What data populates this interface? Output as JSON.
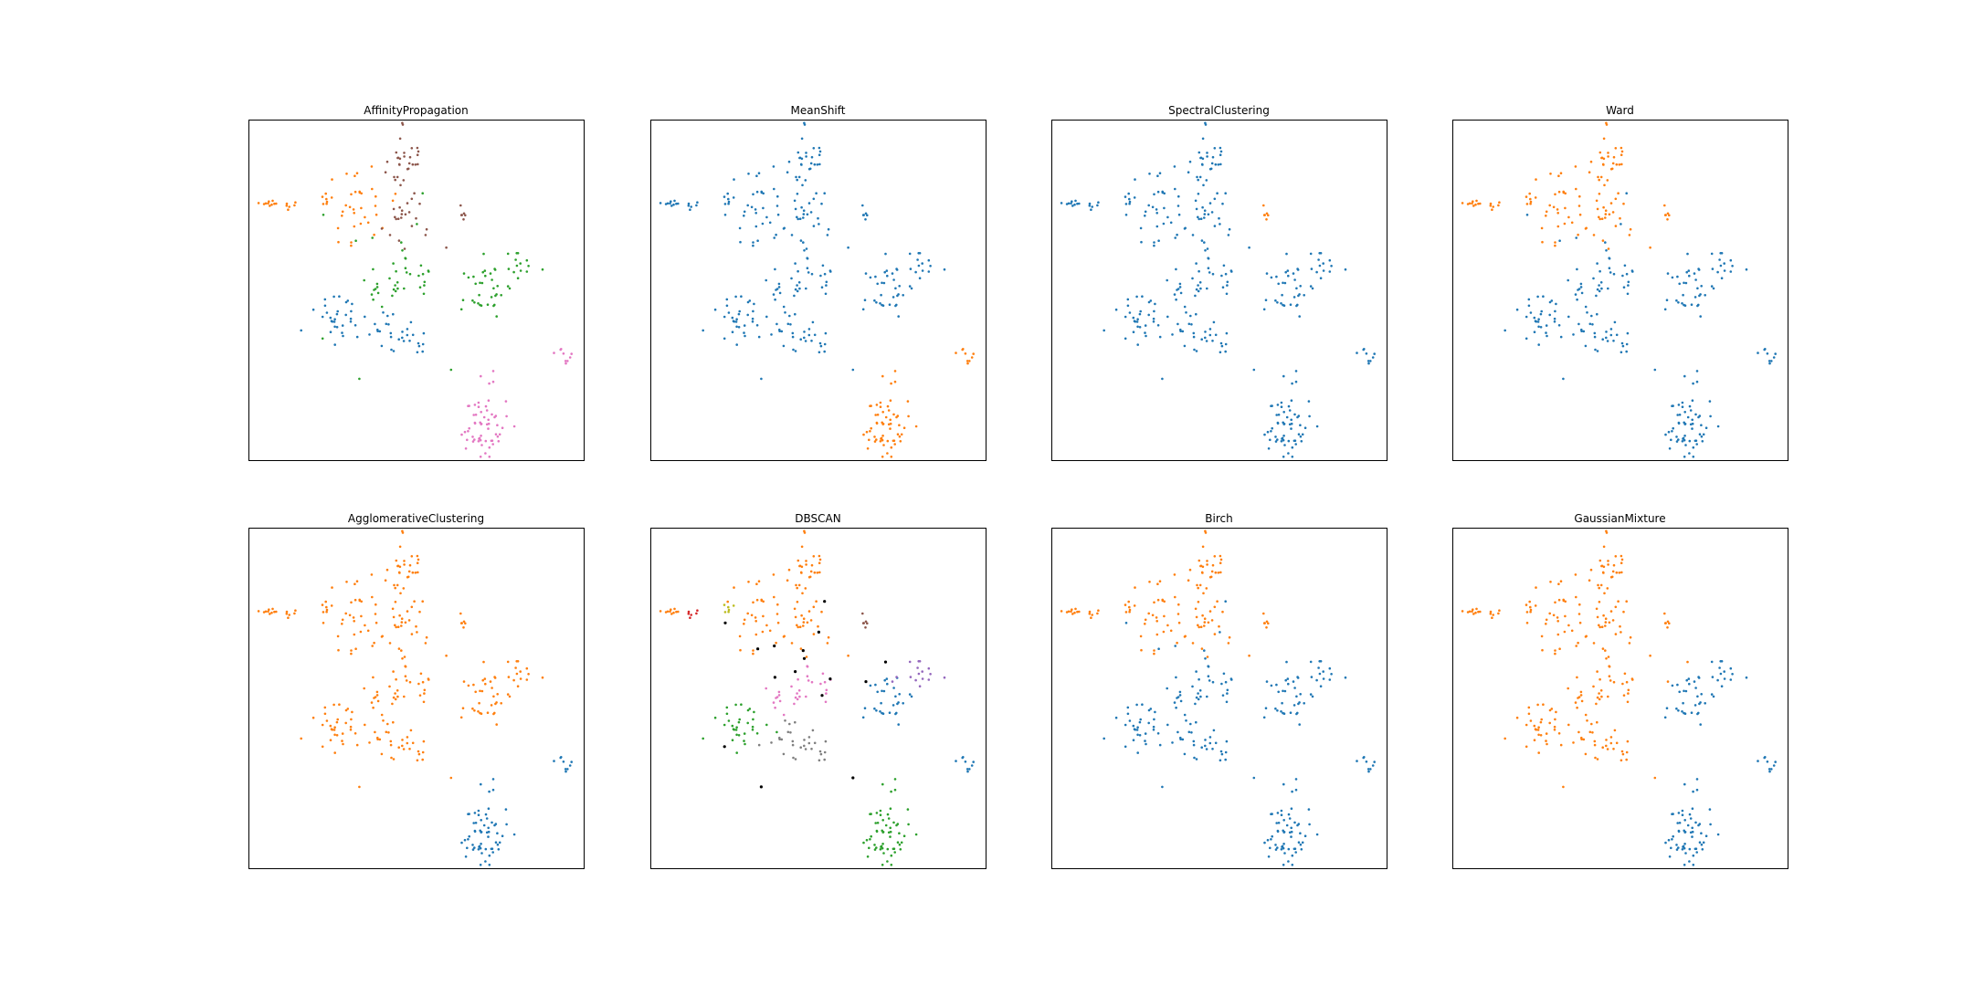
{
  "cluster_colors": {
    "blue": "#1f77b4",
    "orange": "#ff7f0e",
    "green": "#2ca02c",
    "red": "#d62728",
    "purple": "#9467bd",
    "brown": "#8c564b",
    "pink": "#e377c2",
    "gray": "#7f7f7f",
    "olive": "#bcbd22",
    "noise": "#000000"
  },
  "chart_data": [
    {
      "type": "scatter",
      "title": "AffinityPropagation",
      "grid": false,
      "xlabel": "",
      "ylabel": "",
      "xlim": [
        0,
        100
      ],
      "ylim": [
        0,
        100
      ],
      "assignment": {
        "left_arm": "orange",
        "upper_arm": "orange",
        "top_arm": "brown",
        "center_upper": "brown",
        "small_right_upper": "brown",
        "center_lower": "green",
        "right_mid": "green",
        "right_arm": "green",
        "lower_left": "blue",
        "lower_mid": "blue",
        "bottom_right_blob": "pink",
        "far_right_small": "pink"
      }
    },
    {
      "type": "scatter",
      "title": "MeanShift",
      "grid": false,
      "xlabel": "",
      "ylabel": "",
      "xlim": [
        0,
        100
      ],
      "ylim": [
        0,
        100
      ],
      "assignment": {
        "left_arm": "blue",
        "upper_arm": "blue",
        "top_arm": "blue",
        "center_upper": "blue",
        "small_right_upper": "blue",
        "center_lower": "blue",
        "right_mid": "blue",
        "right_arm": "blue",
        "lower_left": "blue",
        "lower_mid": "blue",
        "bottom_right_blob": "orange",
        "far_right_small": "orange"
      }
    },
    {
      "type": "scatter",
      "title": "SpectralClustering",
      "grid": false,
      "xlabel": "",
      "ylabel": "",
      "xlim": [
        0,
        100
      ],
      "ylim": [
        0,
        100
      ],
      "assignment": {
        "left_arm": "blue",
        "upper_arm": "blue",
        "top_arm": "blue",
        "center_upper": "blue",
        "small_right_upper": "orange",
        "center_lower": "blue",
        "right_mid": "blue",
        "right_arm": "blue",
        "lower_left": "blue",
        "lower_mid": "blue",
        "bottom_right_blob": "blue",
        "far_right_small": "blue"
      }
    },
    {
      "type": "scatter",
      "title": "Ward",
      "grid": false,
      "xlabel": "",
      "ylabel": "",
      "xlim": [
        0,
        100
      ],
      "ylim": [
        0,
        100
      ],
      "assignment": {
        "left_arm": "orange",
        "upper_arm": "orange",
        "top_arm": "orange",
        "center_upper": "orange",
        "small_right_upper": "orange",
        "center_lower": "blue",
        "right_mid": "blue",
        "right_arm": "blue",
        "lower_left": "blue",
        "lower_mid": "blue",
        "bottom_right_blob": "blue",
        "far_right_small": "blue"
      }
    },
    {
      "type": "scatter",
      "title": "AgglomerativeClustering",
      "grid": false,
      "xlabel": "",
      "ylabel": "",
      "xlim": [
        0,
        100
      ],
      "ylim": [
        0,
        100
      ],
      "assignment": {
        "left_arm": "orange",
        "upper_arm": "orange",
        "top_arm": "orange",
        "center_upper": "orange",
        "small_right_upper": "orange",
        "center_lower": "orange",
        "right_mid": "orange",
        "right_arm": "orange",
        "lower_left": "orange",
        "lower_mid": "orange",
        "bottom_right_blob": "blue",
        "far_right_small": "blue"
      }
    },
    {
      "type": "scatter",
      "title": "DBSCAN",
      "grid": false,
      "xlabel": "",
      "ylabel": "",
      "xlim": [
        0,
        100
      ],
      "ylim": [
        0,
        100
      ],
      "assignment": {
        "left_arm": "orange",
        "left_arm_mid": "red",
        "left_arm_inner": "olive",
        "upper_arm": "orange",
        "top_arm": "orange",
        "center_upper": "orange",
        "small_right_upper": "brown",
        "center_lower": "pink",
        "right_mid": "blue",
        "right_arm": "purple",
        "lower_left": "green",
        "lower_mid": "gray",
        "bottom_right_blob": "green",
        "far_right_small": "blue",
        "scattered": "noise"
      }
    },
    {
      "type": "scatter",
      "title": "Birch",
      "grid": false,
      "xlabel": "",
      "ylabel": "",
      "xlim": [
        0,
        100
      ],
      "ylim": [
        0,
        100
      ],
      "assignment": {
        "left_arm": "orange",
        "upper_arm": "orange",
        "top_arm": "orange",
        "center_upper": "orange",
        "small_right_upper": "orange",
        "center_lower": "blue",
        "right_mid": "blue",
        "right_arm": "blue",
        "lower_left": "blue",
        "lower_mid": "blue",
        "bottom_right_blob": "blue",
        "far_right_small": "blue"
      }
    },
    {
      "type": "scatter",
      "title": "GaussianMixture",
      "grid": false,
      "xlabel": "",
      "ylabel": "",
      "xlim": [
        0,
        100
      ],
      "ylim": [
        0,
        100
      ],
      "assignment": {
        "left_arm": "orange",
        "upper_arm": "orange",
        "top_arm": "orange",
        "center_upper": "orange",
        "small_right_upper": "orange",
        "center_lower": "orange",
        "right_mid": "blue",
        "right_arm": "blue",
        "lower_left": "orange",
        "lower_mid": "orange",
        "bottom_right_blob": "blue",
        "far_right_small": "blue"
      }
    }
  ],
  "point_groups": {
    "left_arm": {
      "cx": 6,
      "cy": 75,
      "sx": 2.0,
      "sy": 0.8,
      "n": 10
    },
    "left_arm_mid": {
      "cx": 12,
      "cy": 74.5,
      "sx": 2.0,
      "sy": 0.6,
      "n": 6
    },
    "left_arm_inner": {
      "cx": 22,
      "cy": 75,
      "sx": 2.5,
      "sy": 1.5,
      "n": 6
    },
    "upper_arm": {
      "cx": 33,
      "cy": 73,
      "sx": 5.0,
      "sy": 6.0,
      "n": 34
    },
    "top_arm": {
      "cx": 46,
      "cy": 87,
      "sx": 2.2,
      "sy": 6.0,
      "n": 30
    },
    "center_upper": {
      "cx": 46,
      "cy": 71,
      "sx": 4.5,
      "sy": 4.5,
      "n": 22
    },
    "small_right_upper": {
      "cx": 64,
      "cy": 73,
      "sx": 1.0,
      "sy": 1.5,
      "n": 6
    },
    "center_lower": {
      "cx": 45,
      "cy": 53,
      "sx": 6.0,
      "sy": 4.5,
      "n": 30
    },
    "right_mid": {
      "cx": 70,
      "cy": 49,
      "sx": 4.0,
      "sy": 3.2,
      "n": 30
    },
    "right_arm": {
      "cx": 80,
      "cy": 57,
      "sx": 3.0,
      "sy": 2.0,
      "n": 16
    },
    "lower_left": {
      "cx": 26,
      "cy": 42,
      "sx": 4.5,
      "sy": 3.2,
      "n": 32
    },
    "lower_mid": {
      "cx": 44,
      "cy": 37,
      "sx": 5.0,
      "sy": 3.5,
      "n": 30
    },
    "bottom_right_blob": {
      "cx": 70,
      "cy": 11,
      "sx": 3.5,
      "sy": 5.0,
      "n": 60
    },
    "far_right_small": {
      "cx": 93,
      "cy": 30,
      "sx": 1.8,
      "sy": 1.5,
      "n": 9
    },
    "scattered": {
      "cx": 44,
      "cy": 58,
      "sx": 12.0,
      "sy": 14.0,
      "n": 16
    }
  }
}
